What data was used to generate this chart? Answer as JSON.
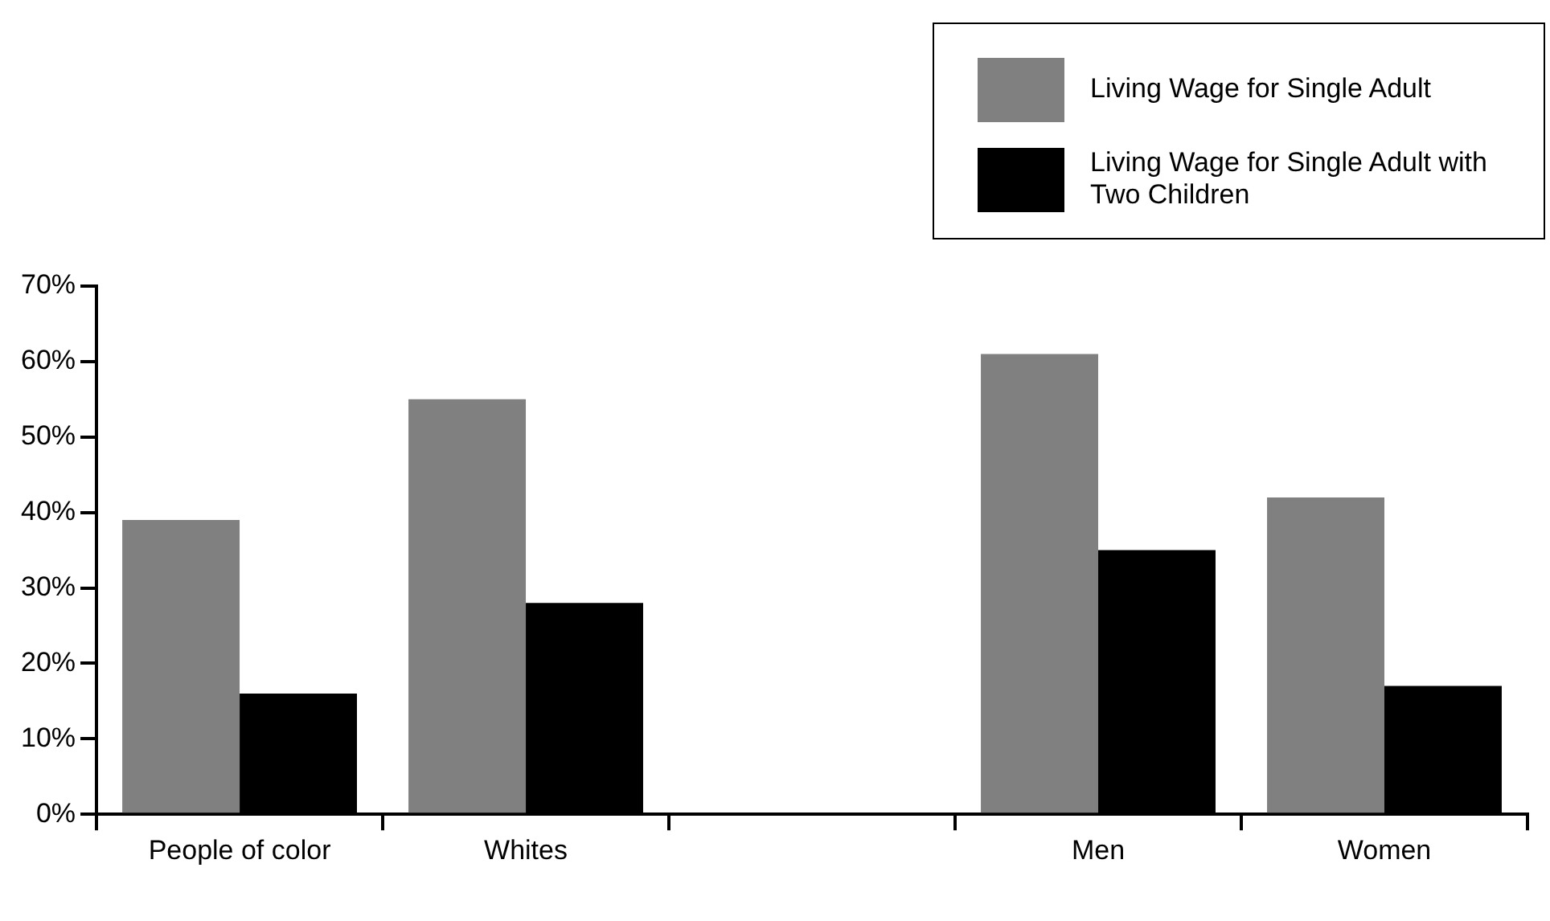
{
  "chart_data": {
    "type": "bar",
    "categories": [
      "People of color",
      "Whites",
      null,
      "Men",
      "Women"
    ],
    "series": [
      {
        "name": "Living Wage for Single Adult",
        "color": "#808080",
        "values": [
          39,
          55,
          null,
          61,
          42
        ]
      },
      {
        "name": "Living Wage for Single Adult with Two Children",
        "color": "#000000",
        "values": [
          16,
          28,
          null,
          35,
          17
        ]
      }
    ],
    "ylim": [
      0,
      70
    ],
    "yticks": [
      {
        "value": 0,
        "label": "0%"
      },
      {
        "value": 10,
        "label": "10%"
      },
      {
        "value": 20,
        "label": "20%"
      },
      {
        "value": 30,
        "label": "30%"
      },
      {
        "value": 40,
        "label": "40%"
      },
      {
        "value": 50,
        "label": "50%"
      },
      {
        "value": 60,
        "label": "60%"
      },
      {
        "value": 70,
        "label": "70%"
      }
    ],
    "grid": false,
    "legend": "top right"
  }
}
